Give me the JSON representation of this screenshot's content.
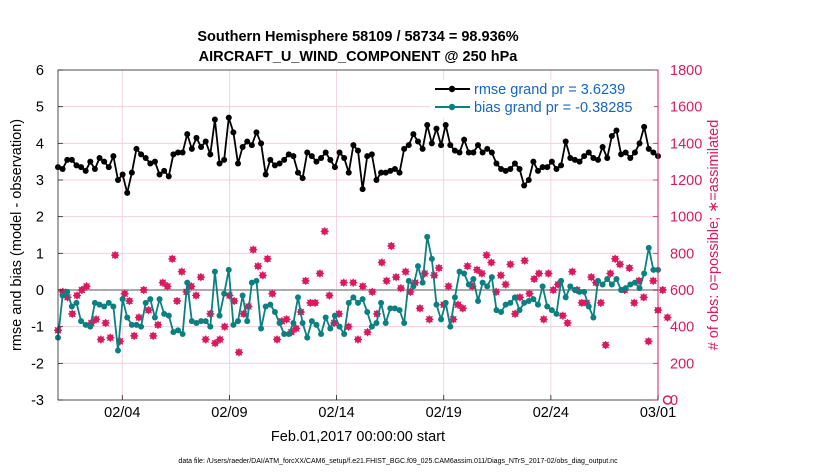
{
  "chart_data": {
    "type": "line",
    "title": "Southern Hemisphere 58109 / 58734 = 98.936%",
    "subtitle": "AIRCRAFT_U_WIND_COMPONENT @ 250 hPa",
    "xlabel": "Feb.01,2017 00:00:00 start",
    "ylabel_left": "rmse and bias (model - observation)",
    "ylabel_right": "# of obs: o=possible; ∗=assimilated",
    "footer": "data file: /Users/raeder/DAI/ATM_forcXX/CAM6_setup/f.e21.FHIST_BGC.f09_025.CAM6assim.011/Diags_NTrS_2017-02/obs_diag_output.nc",
    "xlim": [
      0,
      28
    ],
    "ylim_left": [
      -3,
      6
    ],
    "ylim_right": [
      0,
      1800
    ],
    "x_ticks": [
      3,
      8,
      13,
      18,
      23,
      28
    ],
    "x_tick_labels": [
      "02/04",
      "02/09",
      "02/14",
      "02/19",
      "02/24",
      "03/01"
    ],
    "y_ticks_left": [
      "-3",
      "-2",
      "-1",
      "0",
      "1",
      "2",
      "3",
      "4",
      "5",
      "6"
    ],
    "y_ticks_right": [
      "0",
      "200",
      "400",
      "600",
      "800",
      "1000",
      "1200",
      "1400",
      "1600",
      "1800"
    ],
    "legend_position": "top-right",
    "series": [
      {
        "name": "rmse grand pr = 3.6239",
        "axis": "left",
        "color": "#000000",
        "values": [
          3.35,
          3.3,
          3.55,
          3.55,
          3.4,
          3.35,
          3.25,
          3.5,
          3.3,
          3.6,
          3.5,
          3.35,
          3.65,
          3.0,
          3.15,
          2.65,
          3.2,
          3.85,
          3.7,
          3.6,
          3.45,
          3.5,
          3.15,
          3.25,
          3.1,
          3.7,
          3.75,
          3.75,
          4.25,
          3.85,
          4.15,
          3.9,
          4.05,
          3.7,
          4.65,
          3.45,
          3.55,
          4.7,
          4.3,
          3.45,
          3.9,
          4.05,
          3.95,
          4.3,
          4.0,
          3.15,
          3.55,
          3.4,
          3.45,
          3.55,
          3.7,
          3.65,
          3.2,
          3.05,
          3.75,
          3.65,
          3.5,
          3.6,
          3.75,
          3.55,
          3.35,
          3.75,
          3.6,
          3.2,
          3.95,
          3.8,
          2.75,
          3.65,
          3.7,
          3.0,
          3.2,
          3.2,
          3.25,
          3.3,
          3.2,
          3.85,
          3.95,
          4.25,
          4.05,
          3.85,
          4.5,
          4.0,
          4.4,
          3.95,
          4.5,
          3.95,
          3.8,
          3.75,
          4.1,
          3.75,
          3.75,
          3.95,
          3.75,
          3.85,
          3.75,
          3.45,
          3.3,
          3.25,
          3.3,
          3.45,
          3.3,
          2.85,
          3.0,
          3.5,
          3.25,
          3.35,
          3.35,
          3.5,
          3.3,
          3.4,
          4.05,
          3.6,
          3.55,
          3.5,
          3.65,
          3.75,
          3.6,
          3.55,
          3.9,
          3.6,
          4.2,
          4.35,
          3.7,
          3.75,
          3.6,
          3.75,
          4.0,
          4.45,
          3.85,
          3.75,
          3.65
        ]
      },
      {
        "name": "bias grand pr = -0.38285",
        "axis": "left",
        "color": "#0a8080",
        "values": [
          -1.3,
          -0.15,
          -0.05,
          -0.45,
          -0.35,
          -0.85,
          -0.95,
          -1.0,
          -0.35,
          -0.4,
          -0.45,
          -0.35,
          -0.45,
          -1.65,
          -0.25,
          -0.75,
          -0.95,
          -0.95,
          -1.0,
          -0.35,
          -0.25,
          -0.75,
          -0.25,
          -0.65,
          -0.7,
          -1.15,
          -1.1,
          -1.2,
          0.2,
          -0.85,
          -0.9,
          -0.85,
          -0.85,
          -1.0,
          0.5,
          -0.7,
          -0.1,
          0.55,
          -0.95,
          -0.85,
          -0.15,
          -0.85,
          0.2,
          0.25,
          -1.05,
          -0.45,
          -0.4,
          -0.6,
          -0.9,
          -1.2,
          -1.2,
          -0.9,
          -0.2,
          -0.9,
          -1.3,
          -0.85,
          -0.95,
          -1.2,
          -0.75,
          -1.05,
          -0.7,
          -1.0,
          -1.2,
          -0.35,
          -0.2,
          -0.35,
          -0.25,
          -0.6,
          -1.0,
          -0.9,
          -0.35,
          -0.9,
          -0.5,
          -0.5,
          -0.55,
          -0.9,
          0.25,
          0.1,
          0.65,
          0.2,
          1.45,
          0.85,
          -0.4,
          -0.8,
          -0.35,
          -1.0,
          -0.2,
          0.5,
          0.45,
          0.15,
          0.3,
          -0.3,
          0.2,
          0.1,
          0.35,
          -0.55,
          -0.6,
          -0.4,
          -0.35,
          -0.2,
          -0.55,
          -0.35,
          -0.3,
          -0.25,
          -0.4,
          0.1,
          -0.45,
          -0.55,
          -0.65,
          0.25,
          -0.2,
          0.1,
          0.0,
          -0.05,
          -0.05,
          -0.45,
          -0.75,
          0.25,
          0.15,
          0.3,
          0.15,
          0.3,
          0.0,
          0.05,
          0.15,
          0.2,
          0.05,
          0.45,
          1.15,
          0.55,
          0.55
        ]
      },
      {
        "name": "# of obs assimilated",
        "axis": "right",
        "color": "#d81b60",
        "values": [
          380,
          590,
          560,
          470,
          570,
          600,
          620,
          420,
          440,
          330,
          420,
          340,
          790,
          320,
          580,
          540,
          350,
          450,
          600,
          490,
          350,
          410,
          640,
          620,
          770,
          540,
          700,
          590,
          620,
          570,
          670,
          330,
          470,
          310,
          330,
          400,
          570,
          540,
          260,
          470,
          510,
          820,
          730,
          680,
          770,
          580,
          330,
          430,
          440,
          370,
          390,
          480,
          650,
          530,
          530,
          690,
          920,
          570,
          420,
          470,
          640,
          400,
          640,
          330,
          620,
          370,
          590,
          470,
          750,
          650,
          840,
          670,
          610,
          700,
          590,
          640,
          500,
          690,
          440,
          680,
          720,
          520,
          620,
          440,
          520,
          500,
          730,
          620,
          710,
          690,
          790,
          750,
          590,
          680,
          630,
          740,
          470,
          560,
          760,
          580,
          660,
          690,
          440,
          690,
          600,
          630,
          460,
          420,
          700,
          600,
          530,
          530,
          670,
          640,
          530,
          300,
          690,
          770,
          740,
          600,
          720,
          530,
          650,
          560,
          320,
          650,
          490,
          600,
          450
        ]
      },
      {
        "name": "# of obs possible",
        "axis": "right",
        "color": "#d81b60",
        "values": [
          null,
          null,
          null,
          null,
          null,
          null,
          null,
          null,
          null,
          null,
          null,
          null,
          null,
          null,
          null,
          null,
          null,
          null,
          null,
          null,
          null,
          null,
          null,
          null,
          null,
          null,
          null,
          null,
          null,
          null,
          null,
          null,
          null,
          null,
          null,
          null,
          null,
          null,
          null,
          null,
          null,
          null,
          null,
          null,
          null,
          null,
          null,
          null,
          null,
          null,
          null,
          null,
          null,
          null,
          null,
          null,
          null,
          null,
          null,
          null,
          null,
          null,
          null,
          null,
          null,
          null,
          null,
          null,
          null,
          null,
          null,
          null,
          null,
          null,
          null,
          null,
          null,
          null,
          null,
          null,
          null,
          null,
          null,
          null,
          null,
          null,
          null,
          null,
          null,
          null,
          null,
          null,
          null,
          null,
          null,
          null,
          null,
          null,
          null,
          null,
          null,
          null,
          null,
          null,
          null,
          null,
          null,
          null,
          null,
          null,
          null,
          null,
          null,
          null,
          null,
          null,
          null,
          null,
          null,
          null,
          null,
          null,
          null,
          null,
          null,
          null,
          null,
          null,
          0
        ]
      }
    ]
  },
  "axis_labels": {
    "top_title": "Southern Hemisphere 58109 / 58734 = 98.936%",
    "top_subtitle": "AIRCRAFT_U_WIND_COMPONENT @ 250 hPa"
  }
}
